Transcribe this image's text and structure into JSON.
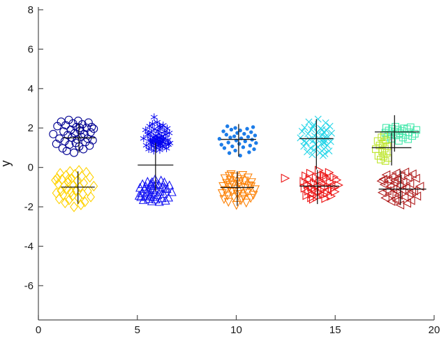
{
  "figure": {
    "background": "#ffffff",
    "title": ""
  },
  "axes": {
    "ylabel": "y",
    "xlabel": "",
    "x_tick_labels": [
      "0",
      "5",
      "10",
      "15",
      "20"
    ],
    "y_tick_labels": [
      "-6",
      "-4",
      "-2",
      "0",
      "2",
      "4",
      "6",
      "8"
    ],
    "axis_color": "#4d4d4d",
    "tick_label_color": "#1a1a1a"
  },
  "chart_data": {
    "type": "scatter",
    "title": "",
    "xlabel": "",
    "ylabel": "y",
    "xlim": [
      0,
      20
    ],
    "ylim": [
      -7.74,
      8.14
    ],
    "x_ticks": [
      0,
      5,
      10,
      15,
      20
    ],
    "y_ticks": [
      -6,
      -4,
      -2,
      0,
      2,
      4,
      6,
      8
    ],
    "grid": false,
    "legend": "none",
    "mean_cross_color": "#1a1a1a",
    "base_offsets": [
      [
        -1.0,
        0.1
      ],
      [
        -0.85,
        -0.45
      ],
      [
        -0.8,
        0.55
      ],
      [
        -0.7,
        -0.15
      ],
      [
        -0.62,
        0.8
      ],
      [
        -0.55,
        -0.7
      ],
      [
        -0.5,
        0.25
      ],
      [
        -0.45,
        -0.3
      ],
      [
        -0.4,
        0.6
      ],
      [
        -0.35,
        -0.85
      ],
      [
        -0.3,
        0.05
      ],
      [
        -0.25,
        0.9
      ],
      [
        -0.22,
        -0.5
      ],
      [
        -0.15,
        0.35
      ],
      [
        -0.1,
        -0.1
      ],
      [
        -0.05,
        0.7
      ],
      [
        0.0,
        -0.95
      ],
      [
        0.03,
        0.15
      ],
      [
        0.08,
        -0.4
      ],
      [
        0.12,
        0.5
      ],
      [
        0.15,
        -0.2
      ],
      [
        0.2,
        0.85
      ],
      [
        0.25,
        -0.6
      ],
      [
        0.3,
        0.3
      ],
      [
        0.35,
        -0.05
      ],
      [
        0.4,
        0.65
      ],
      [
        0.45,
        -0.75
      ],
      [
        0.5,
        0.1
      ],
      [
        0.55,
        -0.35
      ],
      [
        0.6,
        0.45
      ],
      [
        0.65,
        -0.15
      ],
      [
        0.7,
        0.75
      ],
      [
        0.75,
        -0.55
      ],
      [
        0.8,
        0.2
      ],
      [
        0.85,
        0.5
      ],
      [
        0.9,
        -0.25
      ],
      [
        0.95,
        0.4
      ],
      [
        0.28,
        0.45
      ],
      [
        -0.6,
        -0.2
      ],
      [
        0.18,
        -0.72
      ]
    ],
    "clusters": [
      {
        "name": "circles-navy",
        "marker": "circle",
        "color": "#000092",
        "center": [
          1.8,
          1.6
        ],
        "rx": 1.05,
        "ry": 0.9,
        "n": 38,
        "transform": 0,
        "size": 5.4
      },
      {
        "name": "diamonds-gold",
        "marker": "diamond",
        "color": "#FFD200",
        "center": [
          1.8,
          -1.05
        ],
        "rx": 1.0,
        "ry": 1.0,
        "n": 38,
        "transform": 1,
        "size": 5.2
      },
      {
        "name": "asterisks-blue",
        "marker": "asterisk",
        "color": "#0202EF",
        "center": [
          6.0,
          1.55
        ],
        "rx": 0.68,
        "ry": 0.78,
        "n": 55,
        "transform": 2,
        "size": 5.4,
        "extra": [
          [
            5.85,
            2.55
          ]
        ]
      },
      {
        "name": "triangles-up-blue",
        "marker": "triangle-up",
        "color": "#1515F2",
        "center": [
          5.9,
          -1.2
        ],
        "rx": 0.85,
        "ry": 0.62,
        "n": 42,
        "transform": 3,
        "size": 5.6
      },
      {
        "name": "dots-blue",
        "marker": "dot",
        "color": "#1C7CE8",
        "center": [
          10.1,
          1.45
        ],
        "rx": 1.0,
        "ry": 0.85,
        "n": 33,
        "transform": 4,
        "size": 2.7
      },
      {
        "name": "triangles-down-orange",
        "marker": "triangle-down",
        "color": "#FC8208",
        "center": [
          10.1,
          -1.1
        ],
        "rx": 0.9,
        "ry": 0.8,
        "n": 40,
        "transform": 5,
        "size": 5.6
      },
      {
        "name": "x-marks-cyan",
        "marker": "x",
        "color": "#25D5E8",
        "center": [
          14.05,
          1.5
        ],
        "rx": 0.85,
        "ry": 0.95,
        "n": 45,
        "transform": 6,
        "size": 4.6
      },
      {
        "name": "triangles-right-red",
        "marker": "triangle-right",
        "color": "#EC1515",
        "center": [
          14.25,
          -0.9
        ],
        "rx": 0.95,
        "ry": 0.75,
        "n": 40,
        "transform": 7,
        "size": 5.6,
        "extra": [
          [
            12.45,
            -0.55
          ]
        ]
      },
      {
        "name": "squares-springgreen",
        "marker": "square",
        "color": "#43E8AB",
        "center": [
          18.3,
          1.9
        ],
        "rx": 0.85,
        "ry": 0.55,
        "n": 24,
        "transform": 5,
        "size": 4.8
      },
      {
        "name": "squares-chartreuse",
        "marker": "square",
        "color": "#BEE62E",
        "center": [
          17.7,
          1.0
        ],
        "rx": 0.65,
        "ry": 0.75,
        "n": 16,
        "transform": 2,
        "size": 4.8
      },
      {
        "name": "triangles-left-darkred",
        "marker": "triangle-left",
        "color": "#B01E1E",
        "center": [
          18.3,
          -1.05
        ],
        "rx": 1.0,
        "ry": 0.9,
        "n": 40,
        "transform": 1,
        "size": 5.6
      }
    ],
    "mean_crosses": [
      {
        "cx": 2.05,
        "cy": 1.5,
        "left": 1.23,
        "right": 2.87,
        "top": 2.25,
        "bottom": 0.75
      },
      {
        "cx": 2.0,
        "cy": -1.0,
        "left": 1.15,
        "right": 2.85,
        "top": -0.2,
        "bottom": -1.85
      },
      {
        "cx": 5.92,
        "cy": 0.12,
        "left": 5.02,
        "right": 6.82,
        "top": 1.25,
        "bottom": -1.2
      },
      {
        "cx": 10.12,
        "cy": 1.42,
        "left": 9.22,
        "right": 11.0,
        "top": 2.2,
        "bottom": 0.55
      },
      {
        "cx": 10.05,
        "cy": -1.02,
        "left": 9.2,
        "right": 10.9,
        "top": -0.2,
        "bottom": -1.95
      },
      {
        "cx": 14.05,
        "cy": 1.46,
        "left": 13.2,
        "right": 14.9,
        "top": 2.45,
        "bottom": -0.1
      },
      {
        "cx": 14.1,
        "cy": -0.95,
        "left": 13.2,
        "right": 15.2,
        "top": -0.13,
        "bottom": -1.86
      },
      {
        "cx": 18.0,
        "cy": 1.8,
        "left": 17.0,
        "right": 19.25,
        "top": 2.65,
        "bottom": 0.8
      },
      {
        "cx": 17.85,
        "cy": 1.0,
        "left": 16.85,
        "right": 18.85,
        "top": 1.75,
        "bottom": 0.1
      },
      {
        "cx": 18.3,
        "cy": -1.1,
        "left": 17.2,
        "right": 19.6,
        "top": -0.15,
        "bottom": -1.9
      }
    ]
  }
}
